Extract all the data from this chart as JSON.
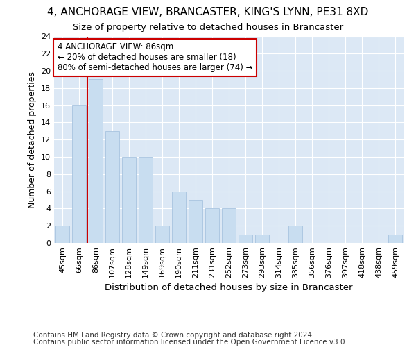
{
  "title": "4, ANCHORAGE VIEW, BRANCASTER, KING'S LYNN, PE31 8XD",
  "subtitle": "Size of property relative to detached houses in Brancaster",
  "xlabel": "Distribution of detached houses by size in Brancaster",
  "ylabel": "Number of detached properties",
  "categories": [
    "45sqm",
    "66sqm",
    "86sqm",
    "107sqm",
    "128sqm",
    "149sqm",
    "169sqm",
    "190sqm",
    "211sqm",
    "231sqm",
    "252sqm",
    "273sqm",
    "293sqm",
    "314sqm",
    "335sqm",
    "356sqm",
    "376sqm",
    "397sqm",
    "418sqm",
    "438sqm",
    "459sqm"
  ],
  "values": [
    2,
    16,
    19,
    13,
    10,
    10,
    2,
    6,
    5,
    4,
    4,
    1,
    1,
    0,
    2,
    0,
    0,
    0,
    0,
    0,
    1
  ],
  "bar_color": "#c8ddf0",
  "bar_edge_color": "#a8c4e0",
  "highlight_index": 2,
  "highlight_line_color": "#cc0000",
  "ylim": [
    0,
    24
  ],
  "yticks": [
    0,
    2,
    4,
    6,
    8,
    10,
    12,
    14,
    16,
    18,
    20,
    22,
    24
  ],
  "annotation_line1": "4 ANCHORAGE VIEW: 86sqm",
  "annotation_line2": "← 20% of detached houses are smaller (18)",
  "annotation_line3": "80% of semi-detached houses are larger (74) →",
  "annotation_box_color": "#cc0000",
  "footer_line1": "Contains HM Land Registry data © Crown copyright and database right 2024.",
  "footer_line2": "Contains public sector information licensed under the Open Government Licence v3.0.",
  "fig_bg_color": "#ffffff",
  "plot_bg_color": "#dce8f5",
  "grid_color": "#ffffff",
  "title_fontsize": 11,
  "subtitle_fontsize": 9.5,
  "xlabel_fontsize": 9.5,
  "ylabel_fontsize": 9,
  "tick_fontsize": 8,
  "annotation_fontsize": 8.5,
  "footer_fontsize": 7.5
}
